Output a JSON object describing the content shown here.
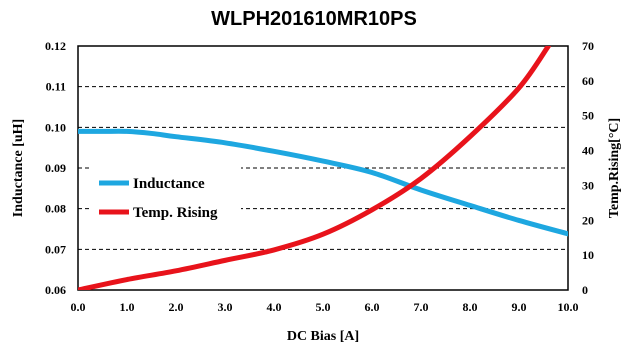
{
  "chart_data": {
    "type": "line",
    "title": "WLPH201610MR10PS",
    "xlabel": "DC Bias [A]",
    "ylabel_left": "Inductance [uH]",
    "ylabel_right": "Temp.Rising[°C]",
    "x_ticks": [
      "0.0",
      "1.0",
      "2.0",
      "3.0",
      "4.0",
      "5.0",
      "6.0",
      "7.0",
      "8.0",
      "9.0",
      "10.0"
    ],
    "y_left_ticks": [
      "0.12",
      "0.11",
      "0.10",
      "0.09",
      "0.08",
      "0.07",
      "0.06"
    ],
    "y_right_ticks": [
      "70",
      "60",
      "50",
      "40",
      "30",
      "20",
      "10",
      "0"
    ],
    "xlim": [
      0,
      10
    ],
    "ylim_left": [
      0.06,
      0.12
    ],
    "ylim_right": [
      0,
      70
    ],
    "grid": "horizontal dashed",
    "legend_position": "left-middle",
    "series": [
      {
        "name": "Inductance",
        "axis": "left",
        "color": "#1ea7e0",
        "x": [
          0,
          0.5,
          1,
          1.5,
          2,
          3,
          4,
          5,
          6,
          7,
          8,
          9,
          10
        ],
        "values": [
          0.099,
          0.099,
          0.099,
          0.0985,
          0.0977,
          0.0962,
          0.0941,
          0.0917,
          0.0889,
          0.0846,
          0.0808,
          0.0771,
          0.0738
        ]
      },
      {
        "name": "Temp. Rising",
        "axis": "right",
        "color": "#e8131b",
        "x": [
          0,
          1,
          2,
          3,
          4,
          5,
          6,
          7,
          8,
          9,
          9.6
        ],
        "values": [
          0,
          3,
          5.5,
          8.5,
          11.5,
          16,
          23,
          32,
          44,
          58,
          70
        ]
      }
    ]
  }
}
